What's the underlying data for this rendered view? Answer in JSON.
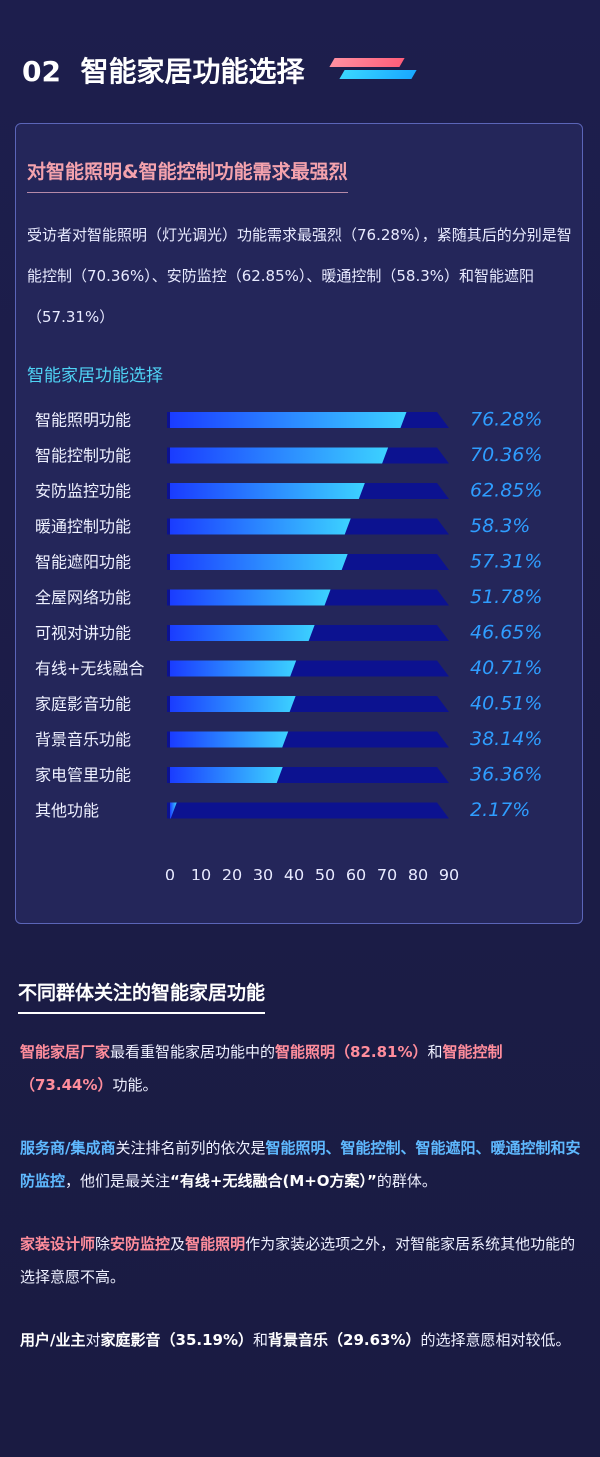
{
  "header": {
    "number": "02",
    "title": "智能家居功能选择"
  },
  "card": {
    "heading": "对智能照明&智能控制功能需求最强烈",
    "paragraph": "受访者对智能照明（灯光调光）功能需求最强烈（76.28%），紧随其后的分别是智能控制（70.36%）、安防监控（62.85%）、暖通控制（58.3%）和智能遮阳（57.31%）"
  },
  "chart_data": {
    "type": "bar",
    "orientation": "horizontal",
    "title": "智能家居功能选择",
    "categories": [
      "智能照明功能",
      "智能控制功能",
      "安防监控功能",
      "暖通控制功能",
      "智能遮阳功能",
      "全屋网络功能",
      "可视对讲功能",
      "有线+无线融合",
      "家庭影音功能",
      "背景音乐功能",
      "家电管里功能",
      "其他功能"
    ],
    "values": [
      76.28,
      70.36,
      62.85,
      58.3,
      57.31,
      51.78,
      46.65,
      40.71,
      40.51,
      38.14,
      36.36,
      2.17
    ],
    "value_labels": [
      "76.28%",
      "70.36%",
      "62.85%",
      "58.3%",
      "57.31%",
      "51.78%",
      "46.65%",
      "40.71%",
      "40.51%",
      "38.14%",
      "36.36%",
      "2.17%"
    ],
    "color": "#2f9dff",
    "xlim": [
      0,
      90
    ],
    "xticks": [
      0,
      10,
      20,
      30,
      40,
      50,
      60,
      70,
      80,
      90
    ]
  },
  "section": {
    "heading": "不同群体关注的智能家居功能",
    "paragraphs": [
      {
        "runs": [
          {
            "text": "智能家居厂家",
            "style": "pink"
          },
          {
            "text": "最看重智能家居功能中的"
          },
          {
            "text": "智能照明（82.81%）",
            "style": "pink"
          },
          {
            "text": "和"
          },
          {
            "text": "智能控制（73.44%）",
            "style": "pink"
          },
          {
            "text": "功能。"
          }
        ]
      },
      {
        "runs": [
          {
            "text": "服务商/集成商",
            "style": "blue"
          },
          {
            "text": "关注排名前列的依次是"
          },
          {
            "text": "智能照明、智能控制、智能遮阳、暖通控制和安防监控",
            "style": "blue"
          },
          {
            "text": "，他们是最关注"
          },
          {
            "text": "“有线+无线融合(M+O方案）”",
            "style": "bold"
          },
          {
            "text": "的群体。"
          }
        ]
      },
      {
        "runs": [
          {
            "text": "家装设计师",
            "style": "pink"
          },
          {
            "text": "除"
          },
          {
            "text": "安防监控",
            "style": "pink"
          },
          {
            "text": "及"
          },
          {
            "text": "智能照明",
            "style": "pink"
          },
          {
            "text": "作为家装必选项之外，对智能家居系统其他功能的选择意愿不高。"
          }
        ]
      },
      {
        "runs": [
          {
            "text": "用户/业主",
            "style": "bold"
          },
          {
            "text": "对"
          },
          {
            "text": "家庭影音（35.19%）",
            "style": "bold"
          },
          {
            "text": "和"
          },
          {
            "text": "背景音乐（29.63%）",
            "style": "bold"
          },
          {
            "text": "的选择意愿相对较低。"
          }
        ]
      }
    ]
  }
}
